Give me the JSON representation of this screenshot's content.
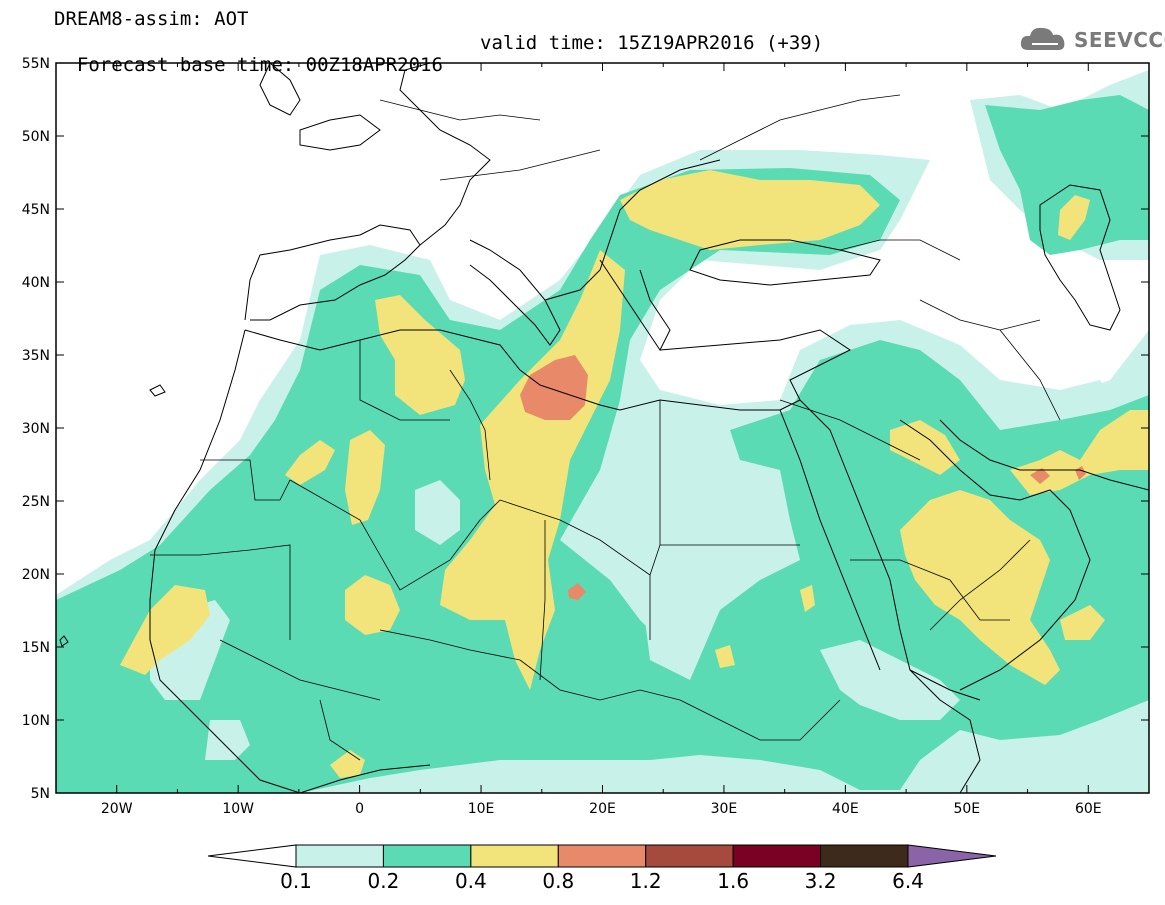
{
  "header": {
    "line1": "DREAM8-assim: AOT",
    "forecast_base": "Forecast base time: 00Z18APR2016",
    "valid_time": "valid time: 15Z19APR2016 (+39)"
  },
  "logo": {
    "text": "SEEVCCC",
    "icon": "cloud-icon"
  },
  "map": {
    "lon_ticks": [
      "20W",
      "10W",
      "0",
      "10E",
      "20E",
      "30E",
      "40E",
      "50E",
      "60E"
    ],
    "lat_ticks": [
      "55N",
      "50N",
      "45N",
      "40N",
      "35N",
      "30N",
      "25N",
      "20N",
      "15N",
      "10N",
      "5N"
    ],
    "lon_range": [
      -25,
      65
    ],
    "lat_range": [
      5,
      55
    ]
  },
  "colorbar": {
    "labels": [
      "0.1",
      "0.2",
      "0.4",
      "0.8",
      "1.2",
      "1.6",
      "3.2",
      "6.4"
    ],
    "colors": [
      "#ffffff",
      "#c8f1ea",
      "#5bdbb3",
      "#f2e47a",
      "#e8896a",
      "#a54a3c",
      "#7a0024",
      "#3d2a1a",
      "#8a64a6"
    ]
  }
}
